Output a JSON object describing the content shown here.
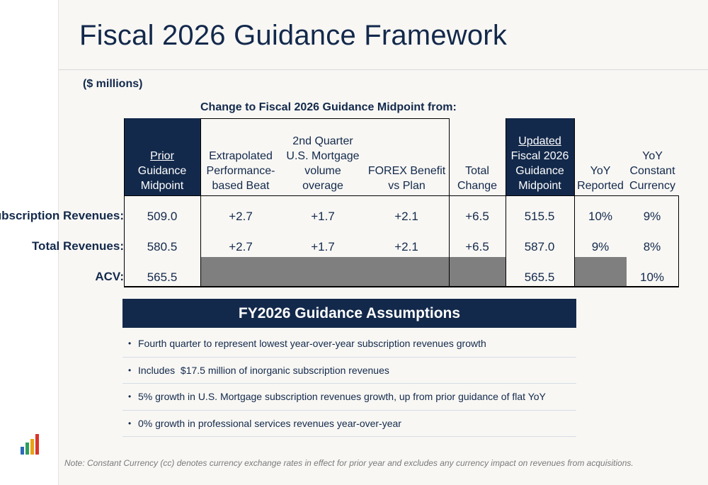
{
  "title": "Fiscal 2026 Guidance Framework",
  "units": "($ millions)",
  "change_header": "Change to Fiscal 2026 Guidance Midpoint from:",
  "columns": [
    {
      "lines": [
        "Prior",
        "Guidance",
        "Midpoint"
      ]
    },
    {
      "lines": [
        "Extrapolated",
        "Performance-",
        "based Beat"
      ]
    },
    {
      "lines": [
        "2nd Quarter",
        "U.S. Mortgage",
        "volume",
        "overage"
      ]
    },
    {
      "lines": [
        "FOREX Benefit",
        "vs Plan"
      ]
    },
    {
      "lines": [
        "Total",
        "Change"
      ]
    },
    {
      "lines": [
        "Updated",
        "Fiscal 2026",
        "Guidance",
        "Midpoint"
      ]
    },
    {
      "lines": [
        "YoY",
        "Reported"
      ]
    },
    {
      "lines": [
        "YoY",
        "Constant",
        "Currency"
      ]
    }
  ],
  "rows": [
    {
      "label": "Subscription Revenues:",
      "values": [
        "509.0",
        "+2.7",
        "+1.7",
        "+2.1",
        "+6.5",
        "515.5",
        "10%",
        "9%"
      ]
    },
    {
      "label": "Total Revenues:",
      "values": [
        "580.5",
        "+2.7",
        "+1.7",
        "+2.1",
        "+6.5",
        "587.0",
        "9%",
        "8%"
      ]
    },
    {
      "label": "ACV:",
      "values": [
        "565.5",
        "",
        "",
        "",
        "",
        "565.5",
        "",
        "10%"
      ]
    }
  ],
  "assumptions": {
    "heading": "FY2026 Guidance Assumptions",
    "items": [
      "Fourth quarter to represent lowest year-over-year subscription revenues growth",
      "Includes  $17.5 million of inorganic subscription revenues",
      "5% growth in U.S. Mortgage subscription revenues growth, up from prior guidance of flat YoY",
      "0% growth in professional services revenues year-over-year"
    ]
  },
  "note": "Note: Constant Currency (cc) denotes currency exchange rates in effect for prior year and excludes any currency impact on revenues from acquisitions.",
  "colors": {
    "navy": "#13294b",
    "gray_fill": "#7f7f7f",
    "logo": [
      "#2e6ab8",
      "#2e9e5b",
      "#e8a317",
      "#d9352b"
    ]
  }
}
